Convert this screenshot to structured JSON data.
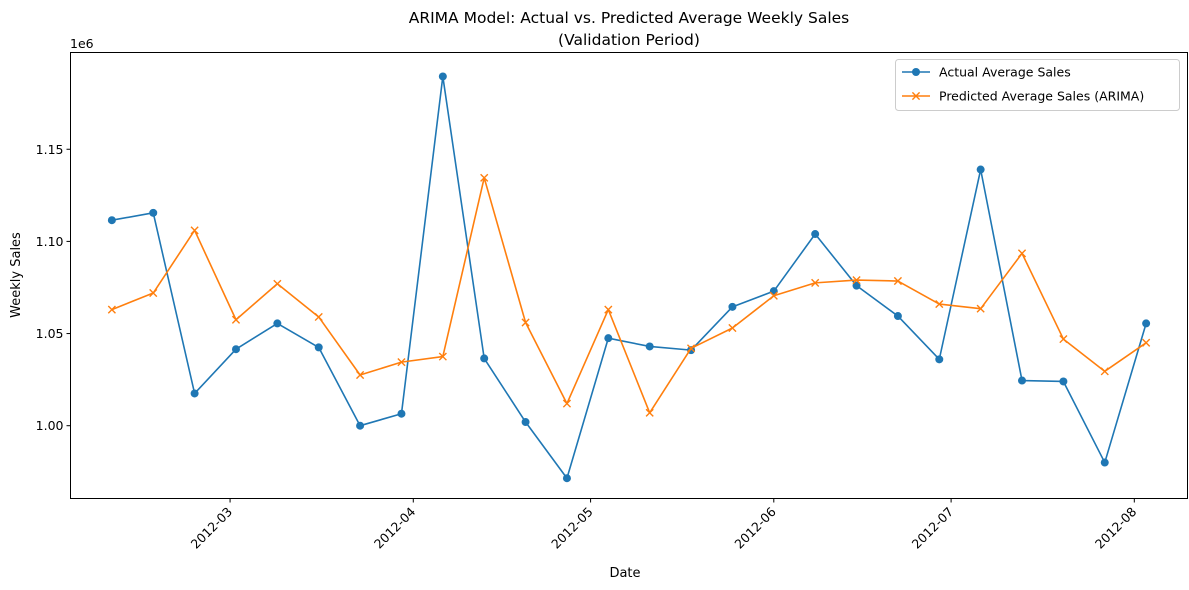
{
  "chart_data": {
    "type": "line",
    "title": "ARIMA Model: Actual vs. Predicted Average Weekly Sales",
    "subtitle": "(Validation Period)",
    "xlabel": "Date",
    "ylabel": "Weekly Sales",
    "y_scale_label": "1e6",
    "y_tick_values": [
      1.0,
      1.05,
      1.1,
      1.15
    ],
    "y_tick_labels": [
      "1.00",
      "1.05",
      "1.10",
      "1.15"
    ],
    "x_tick_labels": [
      "2012-03",
      "2012-04",
      "2012-05",
      "2012-06",
      "2012-07",
      "2012-08"
    ],
    "xlim": [
      "2012-02-03",
      "2012-08-10"
    ],
    "ylim": [
      0.9605,
      1.2025
    ],
    "grid": false,
    "legend_position": "top-right",
    "x": [
      "2012-02-10",
      "2012-02-17",
      "2012-02-24",
      "2012-03-02",
      "2012-03-09",
      "2012-03-16",
      "2012-03-23",
      "2012-03-30",
      "2012-04-06",
      "2012-04-13",
      "2012-04-20",
      "2012-04-27",
      "2012-05-04",
      "2012-05-11",
      "2012-05-18",
      "2012-05-25",
      "2012-06-01",
      "2012-06-08",
      "2012-06-15",
      "2012-06-22",
      "2012-06-29",
      "2012-07-06",
      "2012-07-13",
      "2012-07-20",
      "2012-07-27",
      "2012-08-03"
    ],
    "series": [
      {
        "name": "Actual Average Sales",
        "color": "#1f77b4",
        "marker": "circle",
        "values": [
          1.1115,
          1.1155,
          1.0175,
          1.0415,
          1.0555,
          1.0425,
          1.0,
          1.0065,
          1.1895,
          1.0365,
          1.002,
          0.9715,
          1.0475,
          1.043,
          1.041,
          1.0645,
          1.073,
          1.104,
          1.076,
          1.0595,
          1.036,
          1.139,
          1.0245,
          1.024,
          0.98,
          1.0555
        ]
      },
      {
        "name": "Predicted Average Sales (ARIMA)",
        "color": "#ff7f0e",
        "marker": "x",
        "values": [
          1.063,
          1.072,
          1.106,
          1.0575,
          1.077,
          1.059,
          1.0275,
          1.0345,
          1.0375,
          1.1345,
          1.056,
          1.012,
          1.063,
          1.007,
          1.042,
          1.053,
          1.0705,
          1.0775,
          1.079,
          1.0785,
          1.066,
          1.0635,
          1.0935,
          1.047,
          1.0295,
          1.045
        ]
      }
    ]
  }
}
